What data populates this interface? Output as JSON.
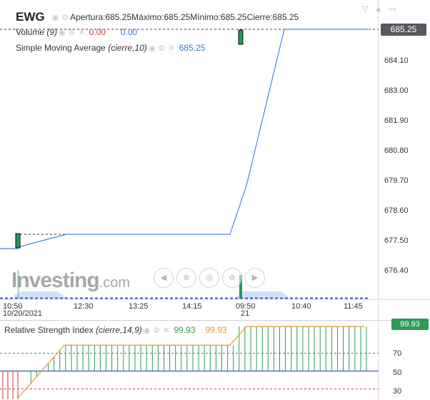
{
  "header": {
    "symbol": "EWG",
    "open_label": "Apertura:",
    "open_value": "685.25",
    "high_label": "Máximo:",
    "high_value": "685.25",
    "low_label": "Mínimo:",
    "low_value": "685.25",
    "close_label": "Cierre:",
    "close_value": "685.25"
  },
  "volume_legend": {
    "label": "Volume",
    "param": "(9)",
    "value1": "0.00",
    "value2": "0.00"
  },
  "sma_legend": {
    "label": "Simple Moving Average",
    "param": "(cierre,10)",
    "value": "685.25"
  },
  "rsi_legend": {
    "label": "Relative Strength Index",
    "param": "(cierre,14,9)",
    "value1": "99.93",
    "value2": "99.93"
  },
  "price_axis": [
    "684.10",
    "683.00",
    "681.90",
    "680.80",
    "679.70",
    "678.60",
    "677.50",
    "676.40"
  ],
  "last_price": "685.25",
  "time_axis": [
    "10:50",
    "12:30",
    "13:25",
    "14:15",
    "09:50",
    "10:40",
    "11:45"
  ],
  "date_axis": [
    "10/20/2021",
    "21"
  ],
  "rsi_axis": [
    "70",
    "50",
    "30"
  ],
  "rsi_last": "99.93",
  "logo": {
    "brand": "Investing",
    "tld": ".com"
  },
  "icons": {
    "legend": [
      "eye-icon",
      "gear-icon",
      "close-icon"
    ],
    "nav": [
      "arrow-left-icon",
      "zoom-in-icon",
      "zoom-reset-icon",
      "zoom-out-icon",
      "arrow-right-icon"
    ],
    "window": [
      "minimize-icon",
      "up-icon",
      "expand-icon"
    ]
  },
  "colors": {
    "price_line": "#4a86e8",
    "candle_up": "#1f9b5b",
    "rsi_line": "#e39b2b",
    "level_70": "#2f9a55",
    "level_30": "#d23b3b"
  },
  "chart_data": {
    "type": "line",
    "title": "EWG",
    "y_range": [
      676.0,
      685.6
    ],
    "series": [
      {
        "name": "Simple Moving Average",
        "x": [
          "10:50",
          "11:30",
          "12:30",
          "13:25",
          "14:15",
          "15:00",
          "09:50",
          "10:15",
          "10:40",
          "11:45",
          "12:30"
        ],
        "values": [
          677.3,
          677.5,
          677.7,
          677.7,
          677.7,
          677.7,
          680.9,
          685.25,
          685.25,
          685.25,
          685.25
        ]
      },
      {
        "name": "RSI",
        "x": [
          "10:50",
          "11:30",
          "12:30",
          "14:15",
          "15:00",
          "09:50",
          "11:45"
        ],
        "values": [
          20,
          79,
          79,
          79,
          79,
          99.9,
          99.93
        ]
      }
    ],
    "rsi_levels": [
      70,
      50,
      30
    ]
  }
}
